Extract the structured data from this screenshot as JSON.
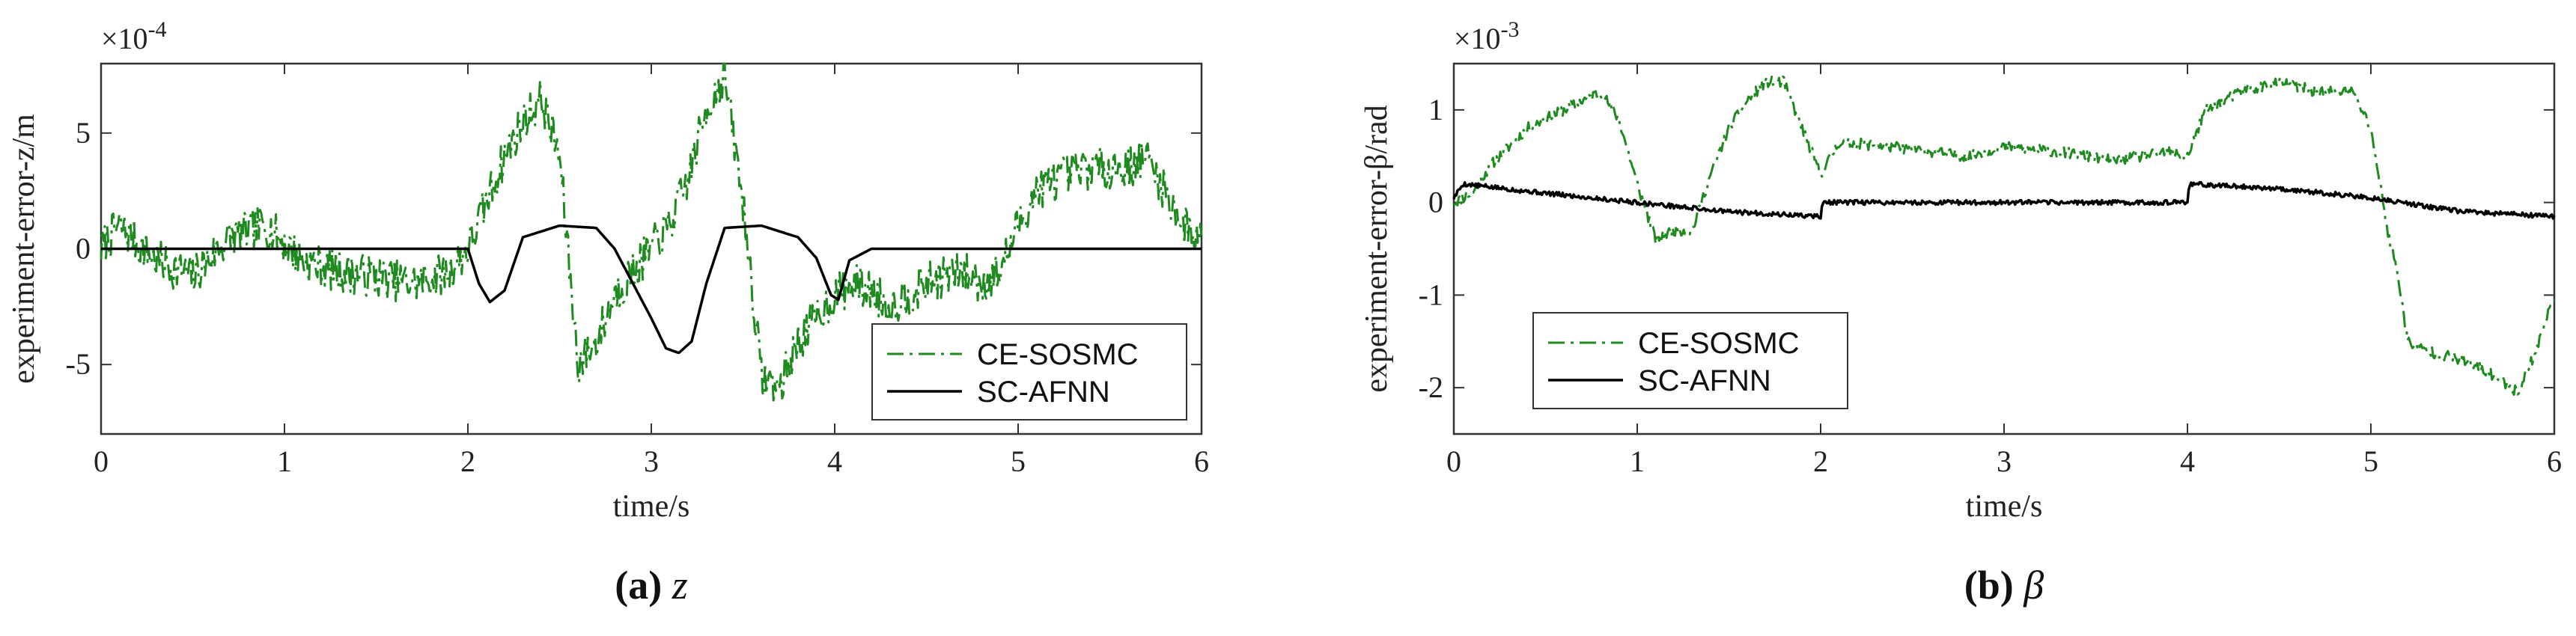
{
  "chart_data": [
    {
      "type": "line",
      "id": "a",
      "caption_label": "(a)",
      "caption_var": "z",
      "xlabel": "time/s",
      "ylabel": "experiment-error-z/m",
      "multiplier": "×10",
      "multiplier_exp": "-4",
      "xlim": [
        0,
        6
      ],
      "ylim": [
        -8,
        8
      ],
      "xticks": [
        0,
        1,
        2,
        3,
        4,
        5,
        6
      ],
      "yticks": [
        -5,
        0,
        5
      ],
      "ytick_labels": [
        "-5",
        "0",
        "5"
      ],
      "legend": {
        "position": "lower-right",
        "entries": [
          "CE-SOSMC",
          "SC-AFNN"
        ]
      },
      "series": [
        {
          "name": "CE-SOSMC",
          "color": "#1f8a1f",
          "style": "dashdot",
          "noise": 0.9,
          "seed": 7,
          "x": [
            0,
            0.1,
            0.3,
            0.5,
            0.7,
            0.9,
            1.1,
            1.3,
            1.5,
            1.7,
            1.9,
            2.0,
            2.1,
            2.2,
            2.3,
            2.4,
            2.5,
            2.6,
            2.7,
            2.8,
            2.9,
            3.0,
            3.1,
            3.2,
            3.3,
            3.4,
            3.5,
            3.6,
            3.7,
            3.8,
            3.9,
            4.0,
            4.1,
            4.2,
            4.3,
            4.4,
            4.5,
            4.6,
            4.7,
            4.8,
            4.9,
            5.0,
            5.1,
            5.2,
            5.4,
            5.6,
            5.7,
            5.8,
            5.9,
            6.0
          ],
          "values": [
            0,
            1,
            -0.5,
            -1.2,
            0.5,
            1,
            -0.5,
            -1,
            -1.2,
            -1.5,
            -1,
            0,
            2,
            4,
            5.5,
            6.5,
            4,
            -5,
            -4,
            -2,
            -1,
            0,
            1,
            3,
            6,
            7.5,
            2,
            -5.5,
            -6,
            -4,
            -3,
            -2,
            -1.5,
            -1.8,
            -2.5,
            -2,
            -1.5,
            -1.2,
            -1,
            -1.5,
            -1,
            1,
            2.5,
            3,
            3.5,
            3.5,
            4,
            2.5,
            1,
            0.5
          ]
        },
        {
          "name": "SC-AFNN",
          "color": "#000000",
          "style": "solid",
          "noise": 0,
          "seed": 3,
          "x": [
            0,
            0.5,
            1.0,
            1.5,
            1.9,
            2.0,
            2.06,
            2.12,
            2.2,
            2.3,
            2.5,
            2.7,
            2.8,
            2.9,
            3.0,
            3.08,
            3.15,
            3.22,
            3.3,
            3.4,
            3.6,
            3.8,
            3.9,
            3.98,
            4.02,
            4.08,
            4.2,
            5.0,
            6.0
          ],
          "values": [
            0,
            0,
            0,
            0,
            0,
            0,
            -1.5,
            -2.3,
            -1.8,
            0.5,
            1,
            0.9,
            0,
            -1.5,
            -3,
            -4.3,
            -4.5,
            -4,
            -1.5,
            0.9,
            1,
            0.5,
            -0.4,
            -2,
            -2.2,
            -0.5,
            0,
            0,
            0
          ]
        }
      ]
    },
    {
      "type": "line",
      "id": "b",
      "caption_label": "(b)",
      "caption_var": "β",
      "xlabel": "time/s",
      "ylabel": "experiment-error-β/rad",
      "multiplier": "×10",
      "multiplier_exp": "-3",
      "xlim": [
        0,
        6
      ],
      "ylim": [
        -2.5,
        1.5
      ],
      "xticks": [
        0,
        1,
        2,
        3,
        4,
        5,
        6
      ],
      "yticks": [
        -2,
        -1,
        0,
        1
      ],
      "ytick_labels": [
        "-2",
        "-1",
        "0",
        "1"
      ],
      "legend": {
        "position": "lower-left",
        "entries": [
          "CE-SOSMC",
          "SC-AFNN"
        ]
      },
      "series": [
        {
          "name": "CE-SOSMC",
          "color": "#1f8a1f",
          "style": "dashdot",
          "noise": 0.06,
          "seed": 11,
          "x": [
            0,
            0.1,
            0.2,
            0.4,
            0.6,
            0.8,
            0.9,
            1.0,
            1.1,
            1.2,
            1.3,
            1.4,
            1.5,
            1.6,
            1.7,
            1.8,
            1.9,
            2.0,
            2.1,
            2.4,
            2.8,
            3.0,
            3.3,
            3.6,
            3.9,
            4.0,
            4.1,
            4.3,
            4.5,
            4.7,
            4.9,
            5.0,
            5.05,
            5.1,
            5.15,
            5.2,
            5.3,
            5.5,
            5.7,
            5.8,
            5.9,
            6.0
          ],
          "values": [
            0,
            0.1,
            0.4,
            0.8,
            1.0,
            1.2,
            0.9,
            0.2,
            -0.4,
            -0.3,
            -0.3,
            0.3,
            0.8,
            1.1,
            1.3,
            1.3,
            0.8,
            0.3,
            0.65,
            0.6,
            0.5,
            0.6,
            0.55,
            0.45,
            0.55,
            0.5,
            1.0,
            1.2,
            1.3,
            1.2,
            1.2,
            0.8,
            0.2,
            -0.4,
            -0.8,
            -1.5,
            -1.6,
            -1.7,
            -1.9,
            -2.05,
            -1.6,
            -1.0
          ]
        },
        {
          "name": "SC-AFNN",
          "color": "#000000",
          "style": "solid",
          "noise": 0.025,
          "seed": 5,
          "x": [
            0,
            0.05,
            0.5,
            1.0,
            1.5,
            1.99,
            2.0,
            2.01,
            3.0,
            3.99,
            4.0,
            4.01,
            4.5,
            5.0,
            5.5,
            6.0
          ],
          "values": [
            0.05,
            0.2,
            0.1,
            0,
            -0.1,
            -0.15,
            -0.15,
            0,
            0,
            0,
            0,
            0.2,
            0.15,
            0.05,
            -0.1,
            -0.15
          ]
        }
      ]
    }
  ]
}
